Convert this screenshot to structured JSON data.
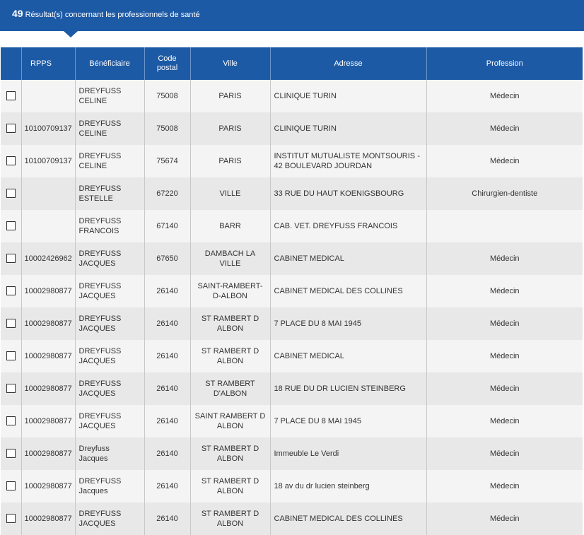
{
  "banner": {
    "count": "49",
    "text": "Résultat(s) concernant les professionnels de santé"
  },
  "table": {
    "headers": {
      "rpps": "RPPS",
      "beneficiaire": "Bénéficiaire",
      "code_postal": "Code postal",
      "ville": "Ville",
      "adresse": "Adresse",
      "profession": "Profession"
    },
    "rows": [
      {
        "rpps": "",
        "beneficiaire": "DREYFUSS CELINE",
        "code_postal": "75008",
        "ville": "PARIS",
        "adresse": "CLINIQUE TURIN",
        "profession": "Médecin"
      },
      {
        "rpps": "10100709137",
        "beneficiaire": "DREYFUSS CELINE",
        "code_postal": "75008",
        "ville": "PARIS",
        "adresse": "CLINIQUE TURIN",
        "profession": "Médecin"
      },
      {
        "rpps": "10100709137",
        "beneficiaire": "DREYFUSS CELINE",
        "code_postal": "75674",
        "ville": "PARIS",
        "adresse": "INSTITUT MUTUALISTE MONTSOURIS - 42 BOULEVARD JOURDAN",
        "profession": "Médecin"
      },
      {
        "rpps": "",
        "beneficiaire": "DREYFUSS ESTELLE",
        "code_postal": "67220",
        "ville": "VILLE",
        "adresse": "33 RUE DU HAUT KOENIGSBOURG",
        "profession": "Chirurgien-dentiste"
      },
      {
        "rpps": "",
        "beneficiaire": "DREYFUSS FRANCOIS",
        "code_postal": "67140",
        "ville": "BARR",
        "adresse": "CAB. VET. DREYFUSS FRANCOIS",
        "profession": ""
      },
      {
        "rpps": "10002426962",
        "beneficiaire": "DREYFUSS JACQUES",
        "code_postal": "67650",
        "ville": "DAMBACH LA VILLE",
        "adresse": "CABINET MEDICAL",
        "profession": "Médecin"
      },
      {
        "rpps": "10002980877",
        "beneficiaire": "DREYFUSS JACQUES",
        "code_postal": "26140",
        "ville": "SAINT-RAMBERT-D-ALBON",
        "adresse": "CABINET MEDICAL DES COLLINES",
        "profession": "Médecin"
      },
      {
        "rpps": "10002980877",
        "beneficiaire": "DREYFUSS JACQUES",
        "code_postal": "26140",
        "ville": "ST RAMBERT D ALBON",
        "adresse": "7 PLACE DU 8 MAI 1945",
        "profession": "Médecin"
      },
      {
        "rpps": "10002980877",
        "beneficiaire": "DREYFUSS JACQUES",
        "code_postal": "26140",
        "ville": "ST RAMBERT D ALBON",
        "adresse": "CABINET MEDICAL",
        "profession": "Médecin"
      },
      {
        "rpps": "10002980877",
        "beneficiaire": "DREYFUSS JACQUES",
        "code_postal": "26140",
        "ville": "ST RAMBERT D'ALBON",
        "adresse": "18 RUE DU DR LUCIEN STEINBERG",
        "profession": "Médecin"
      },
      {
        "rpps": "10002980877",
        "beneficiaire": "DREYFUSS JACQUES",
        "code_postal": "26140",
        "ville": "SAINT RAMBERT D ALBON",
        "adresse": "7 PLACE DU 8 MAI 1945",
        "profession": "Médecin"
      },
      {
        "rpps": "10002980877",
        "beneficiaire": "Dreyfuss Jacques",
        "code_postal": "26140",
        "ville": "ST RAMBERT D ALBON",
        "adresse": "Immeuble Le Verdi",
        "profession": "Médecin"
      },
      {
        "rpps": "10002980877",
        "beneficiaire": "DREYFUSS Jacques",
        "code_postal": "26140",
        "ville": "ST RAMBERT D ALBON",
        "adresse": "18 av du dr lucien steinberg",
        "profession": "Médecin"
      },
      {
        "rpps": "10002980877",
        "beneficiaire": "DREYFUSS JACQUES",
        "code_postal": "26140",
        "ville": "ST RAMBERT D ALBON",
        "adresse": "CABINET MEDICAL DES COLLINES",
        "profession": "Médecin"
      }
    ]
  }
}
